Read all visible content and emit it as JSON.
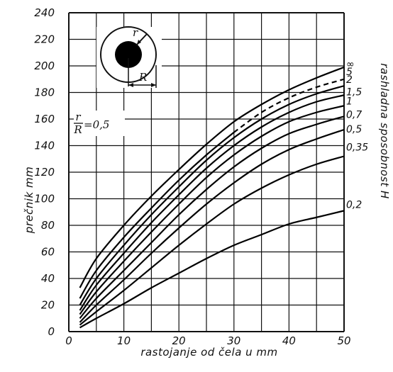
{
  "chart_data": {
    "type": "line",
    "xlabel": "rastojanje od čela  u mm",
    "ylabel": "prečnik  mm",
    "right_label": "rashladna sposobnost  H",
    "xlim": [
      0,
      50
    ],
    "ylim": [
      0,
      240
    ],
    "x_ticks": [
      "0",
      "10",
      "20",
      "30",
      "40",
      "50"
    ],
    "y_ticks": [
      "0",
      "20",
      "40",
      "60",
      "80",
      "100",
      "120",
      "140",
      "160",
      "180",
      "200",
      "220",
      "240"
    ],
    "grid": true,
    "inset": {
      "ratio_label_num": "r",
      "ratio_label_den": "R",
      "ratio_value": "=0,5",
      "r_label": "r",
      "R_label": "R"
    },
    "x": [
      2,
      5,
      10,
      15,
      20,
      25,
      30,
      35,
      40,
      45,
      50
    ],
    "series": [
      {
        "name": "∞",
        "values": [
          33,
          55,
          80,
          102,
          122,
          141,
          158,
          171,
          182,
          191,
          199
        ],
        "dashed_from": null
      },
      {
        "name": "5",
        "values": [
          25,
          46,
          71,
          93,
          114,
          133,
          150,
          165,
          176,
          184,
          190
        ],
        "dashed_from": 30
      },
      {
        "name": "2",
        "values": [
          20,
          40,
          65,
          88,
          109,
          129,
          146,
          160,
          171,
          179,
          185
        ],
        "dashed_from": null
      },
      {
        "name": "1,5",
        "values": [
          16,
          35,
          59,
          82,
          103,
          123,
          140,
          154,
          165,
          173,
          178
        ],
        "dashed_from": null
      },
      {
        "name": "1",
        "values": [
          13,
          30,
          53,
          75,
          96,
          116,
          133,
          147,
          158,
          165,
          170
        ],
        "dashed_from": null
      },
      {
        "name": "0,7",
        "values": [
          10,
          25,
          46,
          67,
          88,
          107,
          124,
          138,
          149,
          156,
          162
        ],
        "dashed_from": null
      },
      {
        "name": "0,5",
        "values": [
          7,
          20,
          39,
          59,
          78,
          96,
          112,
          126,
          137,
          145,
          152
        ],
        "dashed_from": null
      },
      {
        "name": "0,35",
        "values": [
          5,
          15,
          31,
          48,
          65,
          81,
          96,
          108,
          118,
          126,
          132
        ],
        "dashed_from": null
      },
      {
        "name": "0,2",
        "values": [
          3,
          10,
          21,
          33,
          44,
          55,
          65,
          73,
          81,
          86,
          91
        ],
        "dashed_from": null
      }
    ]
  }
}
